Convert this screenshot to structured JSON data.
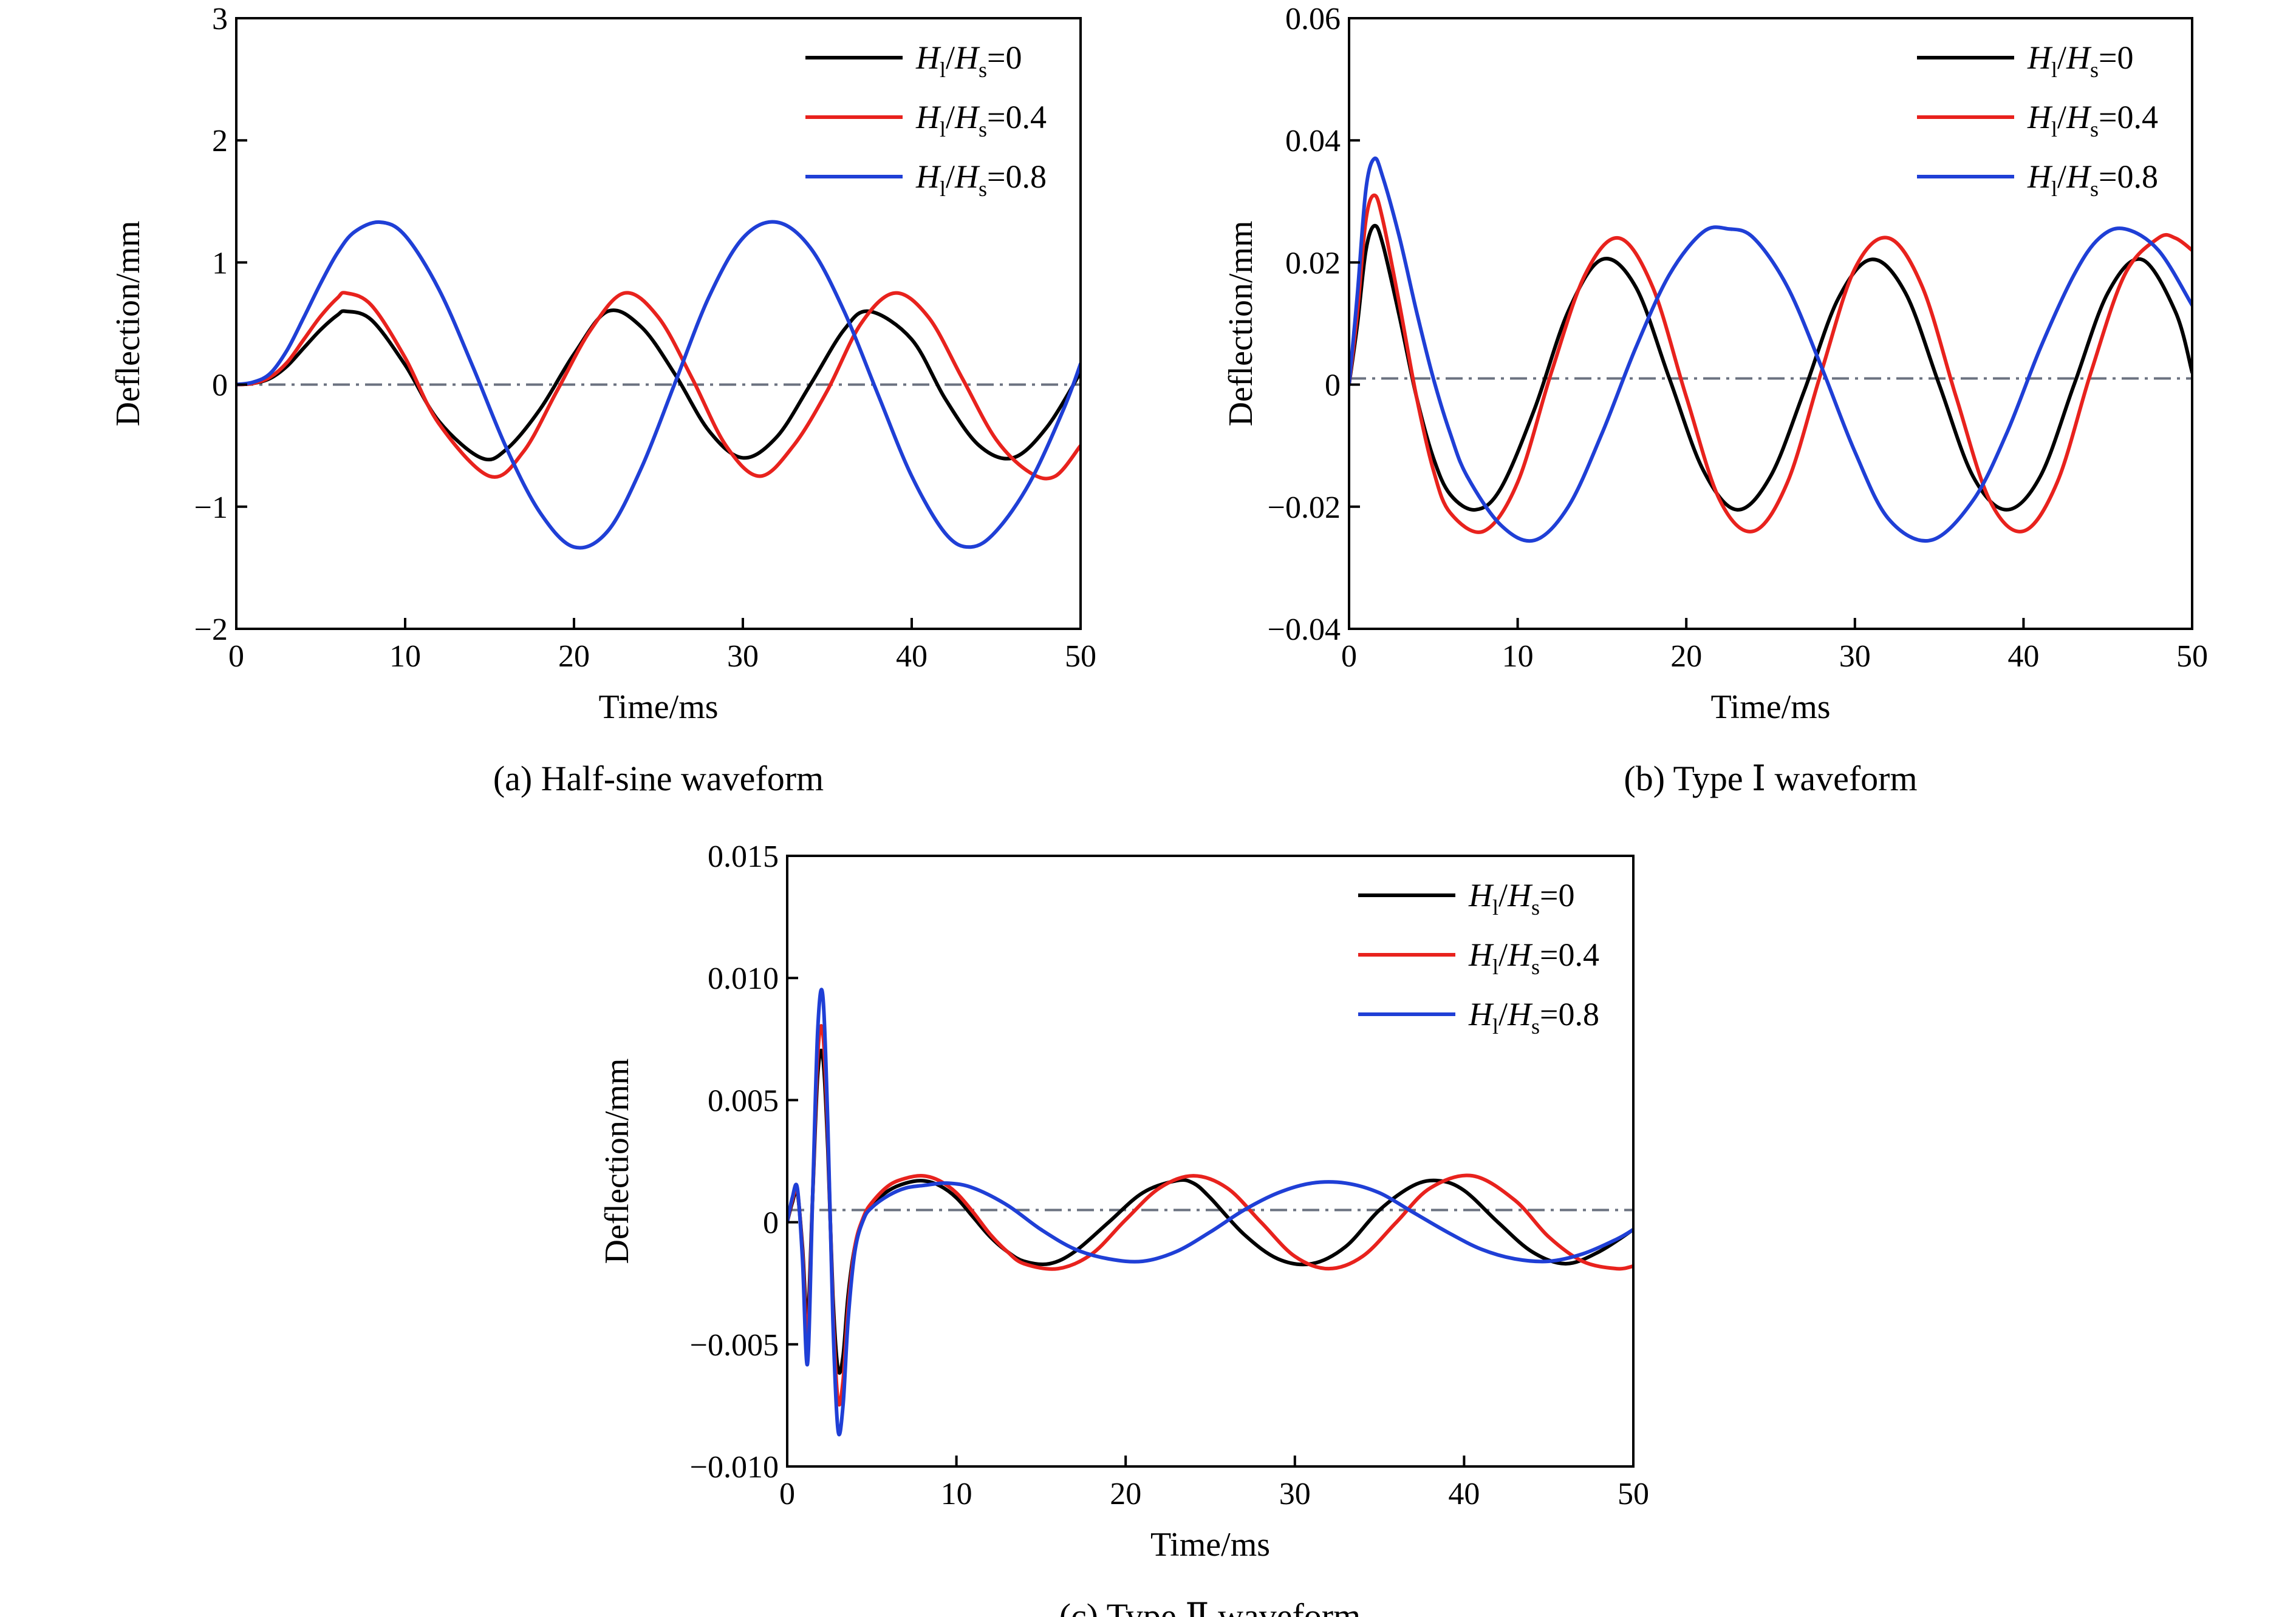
{
  "chart_data": [
    {
      "type": "line",
      "panel": "a",
      "caption": "(a) Half-sine waveform",
      "xlabel": "Time/ms",
      "ylabel": "Deflection/mm",
      "xlim": [
        0,
        50
      ],
      "ylim": [
        -2,
        3
      ],
      "xticks": [
        "0",
        "10",
        "20",
        "30",
        "40",
        "50"
      ],
      "yticks": [
        "−2",
        "−1",
        "0",
        "1",
        "2",
        "3"
      ],
      "reference_line": 0,
      "legend_position": "top-right",
      "series": [
        {
          "name": "H_l/H_s=0",
          "color": "#000000",
          "x": [
            0,
            1,
            2,
            3,
            4,
            5,
            6,
            6.5,
            8,
            10,
            12,
            14.5,
            16,
            18,
            20,
            22,
            24,
            26,
            28,
            30,
            32,
            34,
            36,
            37.5,
            40,
            42,
            44,
            46,
            48,
            50
          ],
          "y": [
            0,
            0.01,
            0.05,
            0.15,
            0.3,
            0.45,
            0.57,
            0.6,
            0.53,
            0.16,
            -0.3,
            -0.6,
            -0.53,
            -0.2,
            0.25,
            0.6,
            0.47,
            0.08,
            -0.38,
            -0.6,
            -0.43,
            0.0,
            0.45,
            0.6,
            0.37,
            -0.12,
            -0.5,
            -0.6,
            -0.35,
            0.1
          ]
        },
        {
          "name": "H_l/H_s=0.4",
          "color": "#e8221d",
          "x": [
            0,
            1,
            2,
            3,
            4,
            5,
            6,
            6.5,
            8,
            10,
            12,
            15,
            17,
            19,
            21,
            23,
            25,
            27,
            29,
            31,
            33,
            35,
            37,
            39,
            41,
            43,
            45,
            47,
            48.5,
            50
          ],
          "y": [
            0,
            0.01,
            0.06,
            0.18,
            0.37,
            0.56,
            0.71,
            0.75,
            0.65,
            0.22,
            -0.32,
            -0.75,
            -0.55,
            -0.05,
            0.45,
            0.75,
            0.55,
            0.05,
            -0.5,
            -0.75,
            -0.5,
            -0.05,
            0.5,
            0.75,
            0.55,
            0.05,
            -0.45,
            -0.72,
            -0.75,
            -0.5
          ]
        },
        {
          "name": "H_l/H_s=0.8",
          "color": "#1f3fd6",
          "x": [
            0,
            1,
            2,
            3,
            4,
            5,
            6,
            7,
            8.5,
            10,
            12,
            14,
            16,
            18,
            20,
            22,
            24,
            26,
            28,
            30,
            32,
            34,
            36,
            38,
            40,
            42,
            43.5,
            45,
            47,
            49,
            50
          ],
          "y": [
            0,
            0.02,
            0.09,
            0.28,
            0.55,
            0.83,
            1.08,
            1.25,
            1.33,
            1.22,
            0.78,
            0.15,
            -0.52,
            -1.05,
            -1.33,
            -1.2,
            -0.68,
            0.02,
            0.72,
            1.2,
            1.33,
            1.12,
            0.6,
            -0.08,
            -0.75,
            -1.22,
            -1.33,
            -1.2,
            -0.8,
            -0.2,
            0.17
          ]
        }
      ]
    },
    {
      "type": "line",
      "panel": "b",
      "caption": "(b) Type Ⅰ waveform",
      "xlabel": "Time/ms",
      "ylabel": "Deflection/mm",
      "xlim": [
        0,
        50
      ],
      "ylim": [
        -0.04,
        0.06
      ],
      "xticks": [
        "0",
        "10",
        "20",
        "30",
        "40",
        "50"
      ],
      "yticks": [
        "−0.04",
        "−0.02",
        "0",
        "0.02",
        "0.04",
        "0.06"
      ],
      "reference_line": 0.001,
      "legend_position": "top-right",
      "series": [
        {
          "name": "H_l/H_s=0",
          "color": "#000000",
          "x": [
            0,
            0.5,
            1,
            1.5,
            2,
            3,
            4,
            5,
            6,
            7.5,
            9,
            11,
            13,
            15,
            17,
            19,
            21,
            23,
            25,
            27,
            29,
            31,
            33,
            35,
            37,
            39,
            41,
            43,
            45,
            47,
            49,
            50
          ],
          "y": [
            0,
            0.01,
            0.022,
            0.026,
            0.023,
            0.011,
            -0.002,
            -0.012,
            -0.018,
            -0.0205,
            -0.017,
            -0.004,
            0.012,
            0.0205,
            0.016,
            0.001,
            -0.014,
            -0.0205,
            -0.015,
            -0.001,
            0.014,
            0.0205,
            0.015,
            0.0,
            -0.015,
            -0.0205,
            -0.015,
            0.0,
            0.015,
            0.0205,
            0.012,
            0.002
          ]
        },
        {
          "name": "H_l/H_s=0.4",
          "color": "#e8221d",
          "x": [
            0,
            0.5,
            1,
            1.5,
            2,
            3,
            4,
            5,
            6,
            8,
            10,
            12,
            14,
            16,
            18,
            20,
            22,
            24,
            26,
            28,
            30,
            32,
            34,
            36,
            38,
            40,
            42,
            44,
            46,
            48,
            49,
            50
          ],
          "y": [
            0,
            0.012,
            0.027,
            0.031,
            0.027,
            0.013,
            -0.002,
            -0.014,
            -0.021,
            -0.024,
            -0.016,
            0.002,
            0.018,
            0.024,
            0.016,
            -0.002,
            -0.019,
            -0.024,
            -0.016,
            0.002,
            0.019,
            0.024,
            0.016,
            -0.002,
            -0.019,
            -0.024,
            -0.016,
            0.002,
            0.018,
            0.024,
            0.024,
            0.022
          ]
        },
        {
          "name": "H_l/H_s=0.8",
          "color": "#1f3fd6",
          "x": [
            0,
            0.5,
            1,
            1.5,
            2,
            3,
            4,
            5,
            6,
            7,
            9,
            11,
            13,
            15,
            17,
            19,
            21,
            22.5,
            24,
            26,
            28,
            30,
            32,
            34.5,
            37,
            39,
            41,
            43,
            44.5,
            46,
            48,
            50
          ],
          "y": [
            0,
            0.015,
            0.032,
            0.037,
            0.034,
            0.024,
            0.012,
            0.001,
            -0.008,
            -0.015,
            -0.023,
            -0.0255,
            -0.02,
            -0.008,
            0.006,
            0.018,
            0.025,
            0.0255,
            0.024,
            0.016,
            0.003,
            -0.011,
            -0.022,
            -0.0255,
            -0.019,
            -0.008,
            0.006,
            0.018,
            0.024,
            0.0255,
            0.022,
            0.013
          ]
        }
      ]
    },
    {
      "type": "line",
      "panel": "c",
      "caption": "(c) Type Ⅱ waveform",
      "xlabel": "Time/ms",
      "ylabel": "Deflection/mm",
      "xlim": [
        0,
        50
      ],
      "ylim": [
        -0.01,
        0.015
      ],
      "xticks": [
        "0",
        "10",
        "20",
        "30",
        "40",
        "50"
      ],
      "yticks": [
        "−0.010",
        "−0.005",
        "0",
        "0.005",
        "0.010",
        "0.015"
      ],
      "reference_line": 0.0005,
      "legend_position": "top-right",
      "series": [
        {
          "name": "H_l/H_s=0",
          "color": "#000000",
          "x": [
            0,
            0.3,
            0.6,
            0.9,
            1.2,
            1.5,
            1.8,
            2.1,
            2.4,
            2.7,
            3,
            3.3,
            3.6,
            4,
            4.5,
            5,
            6,
            7,
            8,
            9,
            10,
            11,
            12,
            13,
            14,
            15.5,
            17,
            19,
            21,
            23,
            24,
            25,
            27,
            29,
            31,
            33,
            35,
            37,
            38.5,
            40,
            42,
            44,
            46,
            48,
            50
          ],
          "y": [
            0,
            0.0008,
            0.0012,
            -0.001,
            -0.004,
            0.001,
            0.006,
            0.0068,
            0.003,
            -0.003,
            -0.006,
            -0.0055,
            -0.003,
            -0.001,
            0.0001,
            0.0007,
            0.0013,
            0.0016,
            0.0017,
            0.0015,
            0.001,
            0.0002,
            -0.0006,
            -0.0012,
            -0.0016,
            -0.0017,
            -0.0012,
            0.0,
            0.0012,
            0.0017,
            0.0016,
            0.001,
            -0.0005,
            -0.0015,
            -0.0017,
            -0.001,
            0.0005,
            0.0015,
            0.0017,
            0.0013,
            0.0,
            -0.0012,
            -0.0017,
            -0.0012,
            -0.0003
          ]
        },
        {
          "name": "H_l/H_s=0.4",
          "color": "#e8221d",
          "x": [
            0,
            0.3,
            0.6,
            0.9,
            1.2,
            1.5,
            1.8,
            2.1,
            2.4,
            2.7,
            3,
            3.3,
            3.6,
            4,
            4.5,
            5,
            6,
            7,
            8,
            9,
            10,
            11,
            12,
            13,
            14,
            16,
            18,
            20,
            22,
            24,
            26,
            28,
            30,
            32,
            34,
            36,
            38,
            40.5,
            43,
            45,
            47,
            49,
            50
          ],
          "y": [
            0,
            0.0009,
            0.0013,
            -0.0012,
            -0.0048,
            0.001,
            0.0068,
            0.0078,
            0.0035,
            -0.0035,
            -0.0073,
            -0.0065,
            -0.0035,
            -0.001,
            0.0002,
            0.0008,
            0.0015,
            0.0018,
            0.0019,
            0.0017,
            0.0012,
            0.0004,
            -0.0005,
            -0.0012,
            -0.0017,
            -0.0019,
            -0.0013,
            0.0001,
            0.0014,
            0.0019,
            0.0014,
            0.0,
            -0.0014,
            -0.0019,
            -0.0014,
            0.0,
            0.0014,
            0.0019,
            0.0009,
            -0.0006,
            -0.0016,
            -0.0019,
            -0.0018
          ]
        },
        {
          "name": "H_l/H_s=0.8",
          "color": "#1f3fd6",
          "x": [
            0,
            0.3,
            0.6,
            0.9,
            1.2,
            1.5,
            1.8,
            2.1,
            2.4,
            2.7,
            3,
            3.3,
            3.6,
            4,
            4.5,
            5,
            6,
            7,
            8,
            9.5,
            11,
            13,
            15,
            17,
            19,
            21,
            23,
            25,
            27,
            29,
            31,
            33,
            35,
            37,
            39,
            41,
            43,
            45,
            47,
            49,
            50
          ],
          "y": [
            0,
            0.001,
            0.0014,
            -0.0015,
            -0.0058,
            0.001,
            0.0078,
            0.0093,
            0.004,
            -0.004,
            -0.0085,
            -0.0075,
            -0.004,
            -0.0012,
            0.0001,
            0.0006,
            0.0011,
            0.0014,
            0.0015,
            0.0016,
            0.0014,
            0.0007,
            -0.0003,
            -0.0011,
            -0.0015,
            -0.0016,
            -0.0012,
            -0.0004,
            0.0005,
            0.0012,
            0.0016,
            0.0016,
            0.0012,
            0.0004,
            -0.0004,
            -0.0011,
            -0.0015,
            -0.0016,
            -0.0013,
            -0.0007,
            -0.0003
          ]
        }
      ]
    }
  ]
}
